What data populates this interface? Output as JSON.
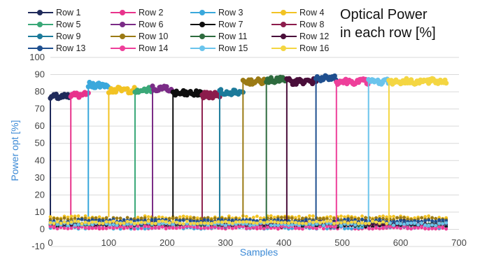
{
  "chart_data": {
    "type": "scatter",
    "title_lines": [
      "Optical Power",
      "in each row [%]"
    ],
    "xlabel": "Samples",
    "ylabel": "Power opt [%]",
    "xlim": [
      0,
      700
    ],
    "ylim": [
      -10,
      100
    ],
    "x_ticks": [
      0,
      100,
      200,
      300,
      400,
      500,
      600,
      700
    ],
    "y_ticks": [
      -10,
      0,
      10,
      20,
      30,
      40,
      50,
      60,
      70,
      80,
      90,
      100
    ],
    "grid": "horizontal",
    "legend_position": "top",
    "series": [
      {
        "name": "Row 1",
        "color": "#1f2a5a",
        "active_x": [
          0,
          35
        ],
        "high": 77,
        "low": 5
      },
      {
        "name": "Row 2",
        "color": "#e8338c",
        "active_x": [
          35,
          65
        ],
        "high": 78,
        "low": 1
      },
      {
        "name": "Row 3",
        "color": "#3aa8dc",
        "active_x": [
          65,
          100
        ],
        "high": 84,
        "low": 1
      },
      {
        "name": "Row 4",
        "color": "#f2c324",
        "active_x": [
          100,
          145
        ],
        "high": 81,
        "low": 7
      },
      {
        "name": "Row 5",
        "color": "#3aa878",
        "active_x": [
          145,
          175
        ],
        "high": 81,
        "low": 3
      },
      {
        "name": "Row 6",
        "color": "#7b2c87",
        "active_x": [
          175,
          210
        ],
        "high": 82,
        "low": 3
      },
      {
        "name": "Row 7",
        "color": "#0e0e0e",
        "active_x": [
          210,
          260
        ],
        "high": 79,
        "low": 2
      },
      {
        "name": "Row 8",
        "color": "#8c1c4c",
        "active_x": [
          260,
          290
        ],
        "high": 78,
        "low": 3
      },
      {
        "name": "Row 9",
        "color": "#1c7a9a",
        "active_x": [
          290,
          330
        ],
        "high": 80,
        "low": 3
      },
      {
        "name": "Row 10",
        "color": "#9b7a14",
        "active_x": [
          330,
          370
        ],
        "high": 86,
        "low": 6
      },
      {
        "name": "Row 11",
        "color": "#2e6b3e",
        "active_x": [
          370,
          405
        ],
        "high": 87,
        "low": 3
      },
      {
        "name": "Row 12",
        "color": "#4a0e3a",
        "active_x": [
          405,
          455
        ],
        "high": 86,
        "low": 3
      },
      {
        "name": "Row 13",
        "color": "#1f4f8f",
        "active_x": [
          455,
          490
        ],
        "high": 88,
        "low": 5
      },
      {
        "name": "Row 14",
        "color": "#ee3f9a",
        "active_x": [
          490,
          545
        ],
        "high": 86,
        "low": 1
      },
      {
        "name": "Row 15",
        "color": "#6ac4ec",
        "active_x": [
          545,
          580
        ],
        "high": 86,
        "low": 3
      },
      {
        "name": "Row 16",
        "color": "#f4d642",
        "active_x": [
          580,
          678
        ],
        "high": 86,
        "low": 4
      }
    ]
  }
}
